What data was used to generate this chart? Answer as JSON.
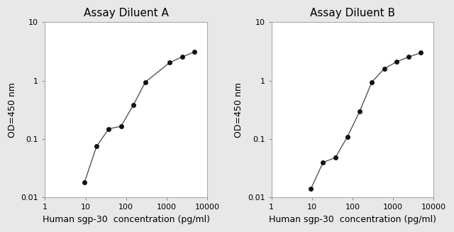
{
  "title_A": "Assay Diluent A",
  "title_B": "Assay Diluent B",
  "xlabel": "Human sgp-30  concentration (pg/ml)",
  "ylabel": "OD=450 nm",
  "xlim": [
    1,
    10000
  ],
  "ylim": [
    0.01,
    10
  ],
  "x_ticks": [
    1,
    10,
    100,
    1000,
    10000
  ],
  "x_tick_labels": [
    "1",
    "10",
    "100",
    "1000",
    "10000"
  ],
  "y_ticks": [
    0.01,
    0.1,
    1,
    10
  ],
  "y_tick_labels": [
    "0.01",
    "0.1",
    "1",
    "10"
  ],
  "data_A_x": [
    9.375,
    18.75,
    37.5,
    75,
    150,
    300,
    1200,
    2400,
    4800
  ],
  "data_A_y": [
    0.018,
    0.075,
    0.15,
    0.165,
    0.38,
    0.95,
    2.05,
    2.55,
    3.1
  ],
  "data_B_x": [
    9.375,
    18.75,
    37.5,
    75,
    150,
    300,
    600,
    1200,
    2400,
    4800
  ],
  "data_B_y": [
    0.014,
    0.04,
    0.048,
    0.11,
    0.3,
    0.95,
    1.6,
    2.1,
    2.55,
    3.0
  ],
  "line_color": "#555555",
  "marker_color": "#111111",
  "bg_color": "#e8e8e8",
  "plot_bg_color": "#ffffff",
  "title_fontsize": 11,
  "label_fontsize": 9,
  "tick_fontsize": 8
}
